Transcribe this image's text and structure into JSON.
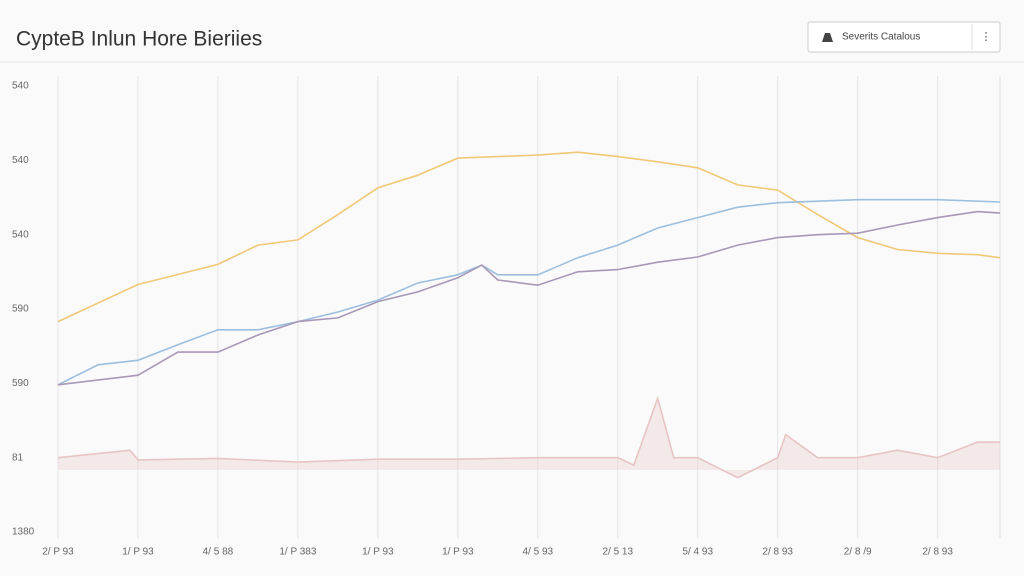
{
  "chart_data": {
    "type": "line",
    "title": "CypteB Inlun Hore Bieriies",
    "dropdown": "Severits Catalous",
    "xlim": [
      0,
      11.78
    ],
    "xticks": [
      {
        "value": 0,
        "label": "2/ P 93"
      },
      {
        "value": 1,
        "label": "1/ P 93"
      },
      {
        "value": 2,
        "label": "4/ 5 88"
      },
      {
        "value": 3,
        "label": "1/ P 383"
      },
      {
        "value": 4,
        "label": "1/ P 93"
      },
      {
        "value": 5,
        "label": "1/ P 93"
      },
      {
        "value": 6,
        "label": "4/ 5 93"
      },
      {
        "value": 7,
        "label": "2/ 5 13"
      },
      {
        "value": 8,
        "label": "5/ 4 93"
      },
      {
        "value": 9,
        "label": "2/ 8 93"
      },
      {
        "value": 10,
        "label": "2/ 8 /9"
      },
      {
        "value": 11,
        "label": "2/ 8 93"
      }
    ],
    "ylim": [
      0,
      6
    ],
    "yticks": [
      {
        "value": 0,
        "label": "1380"
      },
      {
        "value": 1,
        "label": "81"
      },
      {
        "value": 2,
        "label": "590"
      },
      {
        "value": 3,
        "label": "590"
      },
      {
        "value": 4,
        "label": "540"
      },
      {
        "value": 5,
        "label": "540"
      },
      {
        "value": 6,
        "label": "540"
      }
    ],
    "grid": true,
    "series": [
      {
        "color": "#f0c878",
        "fill": false,
        "x": [
          0,
          1,
          2,
          2.5,
          3,
          3.5,
          4,
          4.5,
          5,
          5.5,
          6,
          6.5,
          7,
          7.5,
          8,
          8.5,
          9,
          9.5,
          10,
          10.5,
          11,
          11.5,
          11.78
        ],
        "values": [
          2.83,
          3.33,
          3.6,
          3.86,
          3.93,
          4.27,
          4.63,
          4.8,
          5.03,
          5.05,
          5.07,
          5.11,
          5.05,
          4.98,
          4.9,
          4.67,
          4.6,
          4.27,
          3.96,
          3.8,
          3.75,
          3.73,
          3.69
        ]
      },
      {
        "color": "#9cbfe0",
        "fill": false,
        "x": [
          0,
          0.5,
          1,
          1.5,
          2,
          2.5,
          3,
          3.5,
          4,
          4.5,
          5,
          5.3,
          5.5,
          6,
          6.5,
          7,
          7.5,
          8,
          8.5,
          9,
          9.5,
          10,
          11,
          11.78
        ],
        "values": [
          1.98,
          2.25,
          2.31,
          2.52,
          2.72,
          2.72,
          2.83,
          2.96,
          3.12,
          3.35,
          3.46,
          3.59,
          3.46,
          3.46,
          3.69,
          3.86,
          4.09,
          4.23,
          4.37,
          4.43,
          4.45,
          4.47,
          4.47,
          4.44
        ]
      },
      {
        "color": "#a898b8",
        "fill": false,
        "x": [
          0,
          1,
          1.5,
          2,
          2.5,
          3,
          3.5,
          4,
          4.5,
          5,
          5.3,
          5.5,
          6,
          6.5,
          7,
          7.5,
          8,
          8.5,
          9,
          9.5,
          10,
          10.5,
          11,
          11.5,
          11.78
        ],
        "values": [
          1.98,
          2.11,
          2.42,
          2.42,
          2.65,
          2.83,
          2.88,
          3.1,
          3.23,
          3.42,
          3.59,
          3.39,
          3.32,
          3.5,
          3.53,
          3.63,
          3.7,
          3.86,
          3.96,
          4.0,
          4.02,
          4.13,
          4.23,
          4.31,
          4.29
        ]
      },
      {
        "color": "#e8c4c4",
        "fill": true,
        "x": [
          0,
          0.9,
          1,
          2,
          3,
          4,
          5,
          6,
          7,
          7.2,
          7.5,
          7.7,
          8,
          8.5,
          9,
          9.1,
          9.5,
          10,
          10.5,
          11,
          11.5,
          11.78
        ],
        "values": [
          1.0,
          1.1,
          0.97,
          0.99,
          0.94,
          0.98,
          0.98,
          1.0,
          1.0,
          0.9,
          1.8,
          1.0,
          1.0,
          0.73,
          1.0,
          1.31,
          1.0,
          1.0,
          1.1,
          1.0,
          1.21,
          1.21
        ]
      }
    ]
  }
}
